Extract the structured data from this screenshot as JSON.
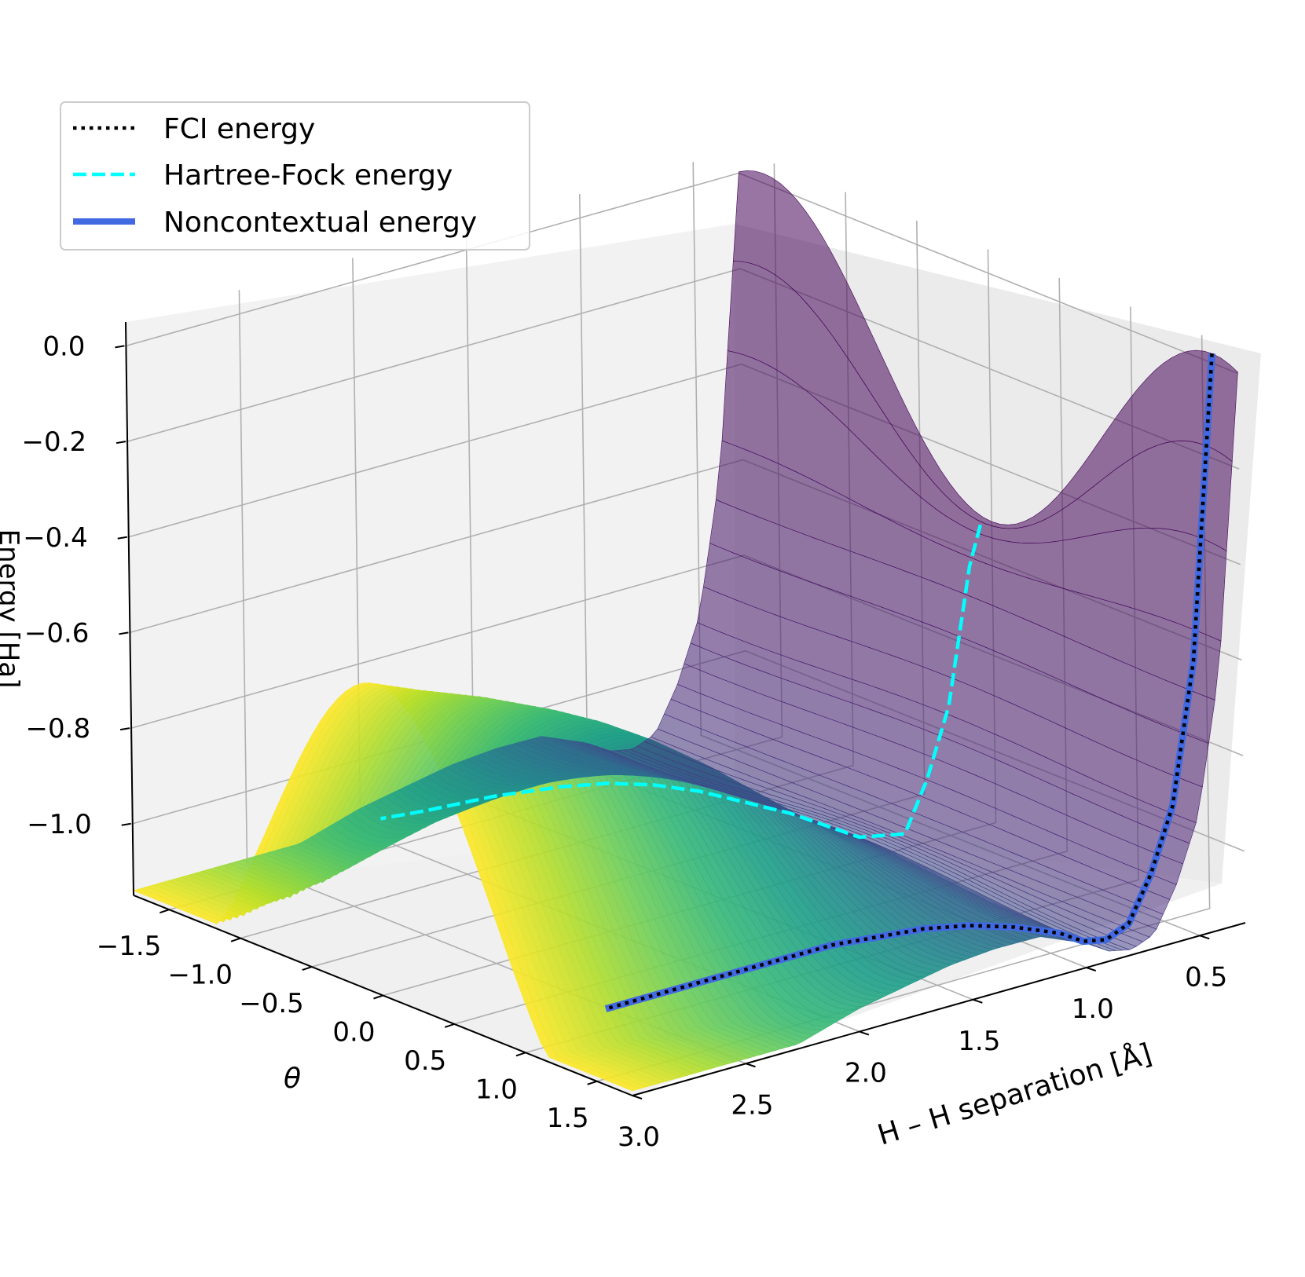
{
  "chart_data": {
    "type": "surface",
    "title": "",
    "xlabel": "H – H separation [Å]",
    "ylabel": "θ",
    "zlabel": "Energy [Ha]",
    "x_ticks": [
      "0.5",
      "1.0",
      "1.5",
      "2.0",
      "2.5",
      "3.0"
    ],
    "y_ticks": [
      "−1.5",
      "−1.0",
      "−0.5",
      "0.0",
      "0.5",
      "1.0",
      "1.5"
    ],
    "z_ticks": [
      "0.0",
      "−0.2",
      "−0.4",
      "−0.6",
      "−0.8",
      "−1.0"
    ],
    "xlim": [
      0.3,
      3.0
    ],
    "ylim": [
      -1.75,
      1.75
    ],
    "zlim": [
      -1.15,
      0.05
    ],
    "grid": true,
    "colormap": "viridis",
    "legend_position": "top-left",
    "series": [
      {
        "name": "FCI energy",
        "style": "dotted",
        "color": "#000000",
        "theta": 1.57,
        "x": [
          0.3,
          0.4,
          0.5,
          0.6,
          0.7,
          0.8,
          0.9,
          1.0,
          1.2,
          1.4,
          1.6,
          1.8,
          2.0,
          2.2,
          2.5,
          2.8,
          3.0
        ],
        "y": [
          0.02,
          -0.61,
          -0.9,
          -1.03,
          -1.12,
          -1.14,
          -1.13,
          -1.1,
          -1.06,
          -1.03,
          -1.01,
          -1.0,
          -0.99,
          -0.99,
          -0.99,
          -0.99,
          -0.99
        ]
      },
      {
        "name": "Hartree-Fock energy",
        "style": "dashed",
        "color": "#00ffff",
        "theta": 0.0,
        "x": [
          0.35,
          0.4,
          0.5,
          0.6,
          0.7,
          0.8,
          0.9,
          1.0,
          1.2,
          1.4,
          1.6,
          1.8,
          2.0,
          2.2,
          2.5,
          2.8,
          3.0
        ],
        "y": [
          -0.52,
          -0.6,
          -0.88,
          -1.02,
          -1.12,
          -1.11,
          -1.1,
          -1.07,
          -1.01,
          -0.96,
          -0.91,
          -0.87,
          -0.84,
          -0.82,
          -0.8,
          -0.79,
          -0.78
        ]
      },
      {
        "name": "Noncontextual energy",
        "style": "solid",
        "color": "#4169e1",
        "theta": 1.57,
        "x": [
          0.3,
          0.4,
          0.5,
          0.6,
          0.7,
          0.8,
          0.9,
          1.0,
          1.2,
          1.4,
          1.6,
          1.8,
          2.0,
          2.2,
          2.5,
          2.8,
          3.0
        ],
        "y": [
          0.02,
          -0.61,
          -0.9,
          -1.03,
          -1.12,
          -1.14,
          -1.13,
          -1.1,
          -1.06,
          -1.03,
          -1.01,
          -1.0,
          -0.99,
          -0.99,
          -0.99,
          -0.99,
          -0.99
        ]
      }
    ]
  }
}
